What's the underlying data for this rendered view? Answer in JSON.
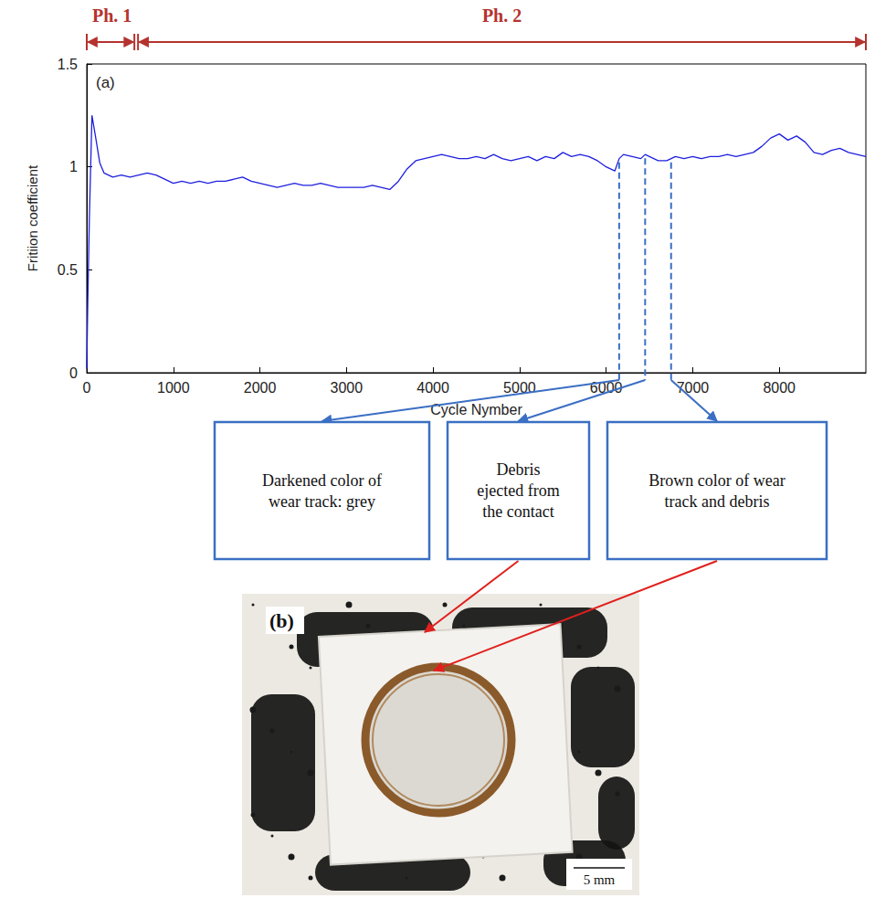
{
  "chart_data": {
    "type": "line",
    "panel_label": "(a)",
    "x_label": "Cycle Nymber",
    "y_label": "Fritiion coefficient",
    "color": "#1f1fe0",
    "grid": false,
    "xlim": [
      0,
      9000
    ],
    "xticks": [
      0,
      1000,
      2000,
      3000,
      4000,
      5000,
      6000,
      7000,
      8000
    ],
    "ylim": [
      0,
      1.5
    ],
    "yticks": [
      0,
      0.5,
      1,
      1.5
    ],
    "x": [
      0,
      10,
      30,
      60,
      100,
      150,
      200,
      300,
      400,
      500,
      600,
      700,
      800,
      900,
      1000,
      1100,
      1200,
      1300,
      1400,
      1500,
      1600,
      1700,
      1800,
      1900,
      2000,
      2100,
      2200,
      2300,
      2400,
      2500,
      2600,
      2700,
      2800,
      2900,
      3000,
      3100,
      3200,
      3300,
      3400,
      3500,
      3600,
      3700,
      3800,
      3900,
      4000,
      4100,
      4200,
      4300,
      4400,
      4500,
      4600,
      4700,
      4800,
      4900,
      5000,
      5100,
      5200,
      5300,
      5400,
      5500,
      5600,
      5700,
      5800,
      5900,
      6000,
      6100,
      6150,
      6200,
      6300,
      6400,
      6450,
      6500,
      6600,
      6700,
      6750,
      6800,
      6900,
      7000,
      7100,
      7200,
      7300,
      7400,
      7500,
      7600,
      7700,
      7800,
      7900,
      8000,
      8100,
      8200,
      8300,
      8400,
      8500,
      8600,
      8700,
      8800,
      8900,
      9000
    ],
    "values": [
      0.02,
      0.3,
      0.75,
      1.25,
      1.15,
      1.02,
      0.97,
      0.95,
      0.96,
      0.95,
      0.96,
      0.97,
      0.96,
      0.94,
      0.92,
      0.93,
      0.92,
      0.93,
      0.92,
      0.93,
      0.93,
      0.94,
      0.95,
      0.93,
      0.92,
      0.91,
      0.9,
      0.91,
      0.92,
      0.91,
      0.91,
      0.92,
      0.91,
      0.9,
      0.9,
      0.9,
      0.9,
      0.91,
      0.9,
      0.89,
      0.93,
      0.99,
      1.03,
      1.04,
      1.05,
      1.06,
      1.05,
      1.04,
      1.04,
      1.05,
      1.04,
      1.06,
      1.04,
      1.03,
      1.04,
      1.05,
      1.03,
      1.05,
      1.04,
      1.07,
      1.05,
      1.06,
      1.05,
      1.03,
      1.0,
      0.98,
      1.04,
      1.06,
      1.05,
      1.04,
      1.06,
      1.05,
      1.03,
      1.03,
      1.04,
      1.05,
      1.04,
      1.05,
      1.04,
      1.05,
      1.05,
      1.06,
      1.05,
      1.06,
      1.07,
      1.1,
      1.14,
      1.16,
      1.13,
      1.15,
      1.12,
      1.07,
      1.06,
      1.08,
      1.09,
      1.07,
      1.06,
      1.05
    ],
    "phases": [
      {
        "label": "Ph. 1",
        "start": 0,
        "end": 550
      },
      {
        "label": "Ph. 2",
        "start": 550,
        "end": 9000
      }
    ],
    "annotations": [
      {
        "x": 6150,
        "text": "Darkened color of wear track: grey"
      },
      {
        "x": 6450,
        "text": "Debris ejected from the contact"
      },
      {
        "x": 6750,
        "text": "Brown color of wear track and debris"
      }
    ],
    "panel_b": {
      "label": "(b)",
      "scale_bar": "5 mm"
    }
  }
}
